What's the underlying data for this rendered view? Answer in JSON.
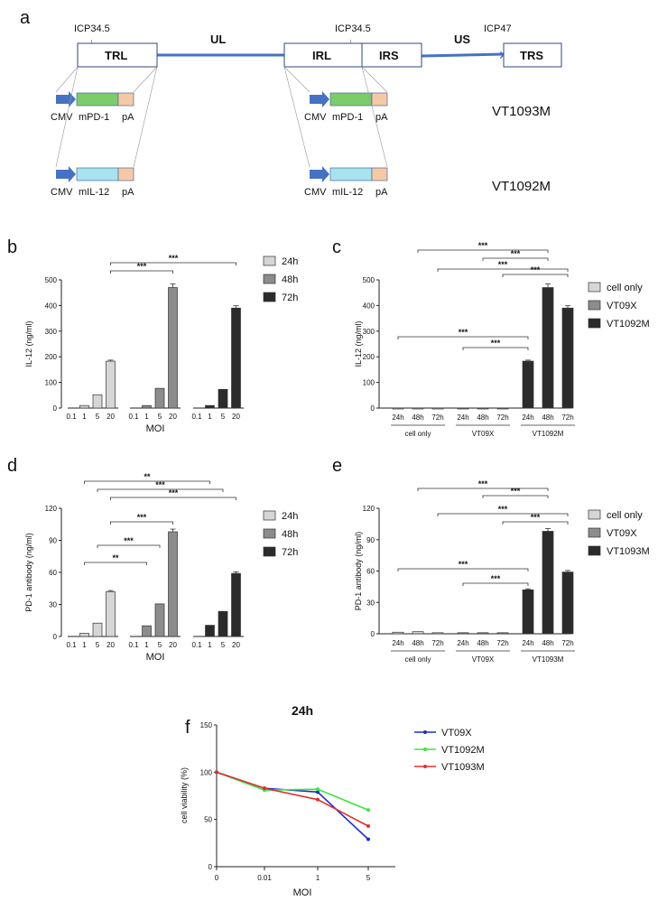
{
  "panel_a": {
    "label": "a",
    "segments": [
      "TRL",
      "UL",
      "IRL",
      "IRS",
      "US",
      "TRS"
    ],
    "gene_icp345_left": "ICP34.5",
    "gene_icp345_right": "ICP34.5",
    "gene_icp47": "ICP47",
    "arrow": "↓",
    "constructs": [
      {
        "name": "VT1093M",
        "parts": [
          "CMV",
          "mPD-1",
          "pA"
        ],
        "color": "#7ccc6a"
      },
      {
        "name": "VT1092M",
        "parts": [
          "CMV",
          "mIL-12",
          "pA"
        ],
        "color": "#a6e4ef"
      }
    ],
    "colors": {
      "pA": "#f6c9a6",
      "arrow": "#4672c4",
      "line": "#4672c4"
    }
  },
  "chart_data": [
    {
      "id": "b",
      "type": "bar",
      "ylabel": "IL-12 (ng/ml)",
      "xlabel": "MOI",
      "ylim": [
        0,
        500
      ],
      "yticks": [
        0,
        100,
        200,
        300,
        400,
        500
      ],
      "categories": [
        "0.1",
        "1",
        "5",
        "20"
      ],
      "series": [
        {
          "name": "24h",
          "values": [
            0,
            10,
            52,
            183
          ],
          "errors": [
            0,
            0,
            0,
            4
          ],
          "color": "#d6d6d6"
        },
        {
          "name": "48h",
          "values": [
            0,
            10,
            77,
            470
          ],
          "errors": [
            0,
            0,
            0,
            14
          ],
          "color": "#8c8c8c"
        },
        {
          "name": "72h",
          "values": [
            0,
            10,
            73,
            390
          ],
          "errors": [
            0,
            0,
            0,
            9
          ],
          "color": "#2b2b2b"
        }
      ],
      "significance": [
        {
          "from": "24h-20",
          "to": "48h-20",
          "label": "***"
        },
        {
          "from": "24h-20",
          "to": "72h-20",
          "label": "***"
        }
      ]
    },
    {
      "id": "c",
      "type": "bar",
      "ylabel": "IL-12 (ng/ml)",
      "ylim": [
        0,
        500
      ],
      "yticks": [
        0,
        100,
        200,
        300,
        400,
        500
      ],
      "time_labels": [
        "24h",
        "48h",
        "72h"
      ],
      "groups": [
        {
          "name": "cell only",
          "values": [
            0,
            0,
            0
          ],
          "color": "#d6d6d6"
        },
        {
          "name": "VT09X",
          "values": [
            0,
            0,
            0
          ],
          "color": "#8c8c8c"
        },
        {
          "name": "VT1092M",
          "values": [
            183,
            470,
            390
          ],
          "errors": [
            4,
            14,
            9
          ],
          "color": "#2b2b2b"
        }
      ],
      "significance": [
        {
          "from": "cell only 48h",
          "to": "VT1092M 48h",
          "label": "***"
        },
        {
          "from": "cell only 72h",
          "to": "VT1092M 72h",
          "label": "***"
        },
        {
          "from": "VT09X 48h",
          "to": "VT1092M 48h",
          "label": "***"
        },
        {
          "from": "VT09X 72h",
          "to": "VT1092M 72h",
          "label": "***"
        },
        {
          "from": "cell only 24h",
          "to": "VT1092M 24h",
          "label": "***"
        },
        {
          "from": "VT09X 24h",
          "to": "VT1092M 24h",
          "label": "***"
        }
      ]
    },
    {
      "id": "d",
      "type": "bar",
      "ylabel": "PD-1 antibody (ng/ml)",
      "xlabel": "MOI",
      "ylim": [
        0,
        120
      ],
      "yticks": [
        0,
        30,
        60,
        90,
        120
      ],
      "categories": [
        "0.1",
        "1",
        "5",
        "20"
      ],
      "series": [
        {
          "name": "24h",
          "values": [
            0,
            3,
            12.5,
            42
          ],
          "errors": [
            0,
            0,
            0,
            1
          ],
          "color": "#d6d6d6"
        },
        {
          "name": "48h",
          "values": [
            0,
            10,
            30.5,
            98
          ],
          "errors": [
            0,
            0,
            0,
            2.5
          ],
          "color": "#8c8c8c"
        },
        {
          "name": "72h",
          "values": [
            0,
            10.5,
            23.5,
            59
          ],
          "errors": [
            0,
            0,
            0,
            1.5
          ],
          "color": "#2b2b2b"
        }
      ],
      "significance": [
        {
          "from": "24h-20",
          "to": "72h-20",
          "label": "***"
        },
        {
          "from": "24h-5",
          "to": "72h-5",
          "label": "***"
        },
        {
          "from": "24h-1",
          "to": "72h-1",
          "label": "**"
        },
        {
          "from": "24h-20",
          "to": "48h-20",
          "label": "***"
        },
        {
          "from": "24h-5",
          "to": "48h-5",
          "label": "***"
        },
        {
          "from": "24h-1",
          "to": "48h-1",
          "label": "**"
        }
      ]
    },
    {
      "id": "e",
      "type": "bar",
      "ylabel": "PD-1 antibody (ng/ml)",
      "ylim": [
        0,
        120
      ],
      "yticks": [
        0,
        30,
        60,
        90,
        120
      ],
      "time_labels": [
        "24h",
        "48h",
        "72h"
      ],
      "groups": [
        {
          "name": "cell only",
          "values": [
            1.5,
            2,
            1
          ],
          "color": "#d6d6d6"
        },
        {
          "name": "VT09X",
          "values": [
            1,
            1,
            1
          ],
          "color": "#8c8c8c"
        },
        {
          "name": "VT1093M",
          "values": [
            42,
            98,
            59
          ],
          "errors": [
            1,
            2.5,
            1.5
          ],
          "color": "#2b2b2b"
        }
      ],
      "significance": [
        {
          "from": "cell only 48h",
          "to": "VT1093M 48h",
          "label": "***"
        },
        {
          "from": "cell only 72h",
          "to": "VT1093M 72h",
          "label": "***"
        },
        {
          "from": "VT09X 48h",
          "to": "VT1093M 48h",
          "label": "***"
        },
        {
          "from": "VT09X 72h",
          "to": "VT1093M 72h",
          "label": "***"
        },
        {
          "from": "cell only 24h",
          "to": "VT1093M 24h",
          "label": "***"
        },
        {
          "from": "VT09X 24h",
          "to": "VT1093M 24h",
          "label": "***"
        }
      ]
    },
    {
      "id": "f",
      "type": "line",
      "title": "24h",
      "xlabel": "MOI",
      "ylabel": "cell viability (%)",
      "ylim": [
        0,
        150
      ],
      "yticks": [
        0,
        50,
        100,
        150
      ],
      "x": [
        "0",
        "0.01",
        "1",
        "5"
      ],
      "series": [
        {
          "name": "VT09X",
          "values": [
            100,
            83,
            79,
            29
          ],
          "color": "#1d2fc4"
        },
        {
          "name": "VT1092M",
          "values": [
            100,
            81,
            82,
            60
          ],
          "color": "#3ce63c"
        },
        {
          "name": "VT1093M",
          "values": [
            100,
            83,
            71,
            43
          ],
          "color": "#e0302f"
        }
      ]
    }
  ]
}
